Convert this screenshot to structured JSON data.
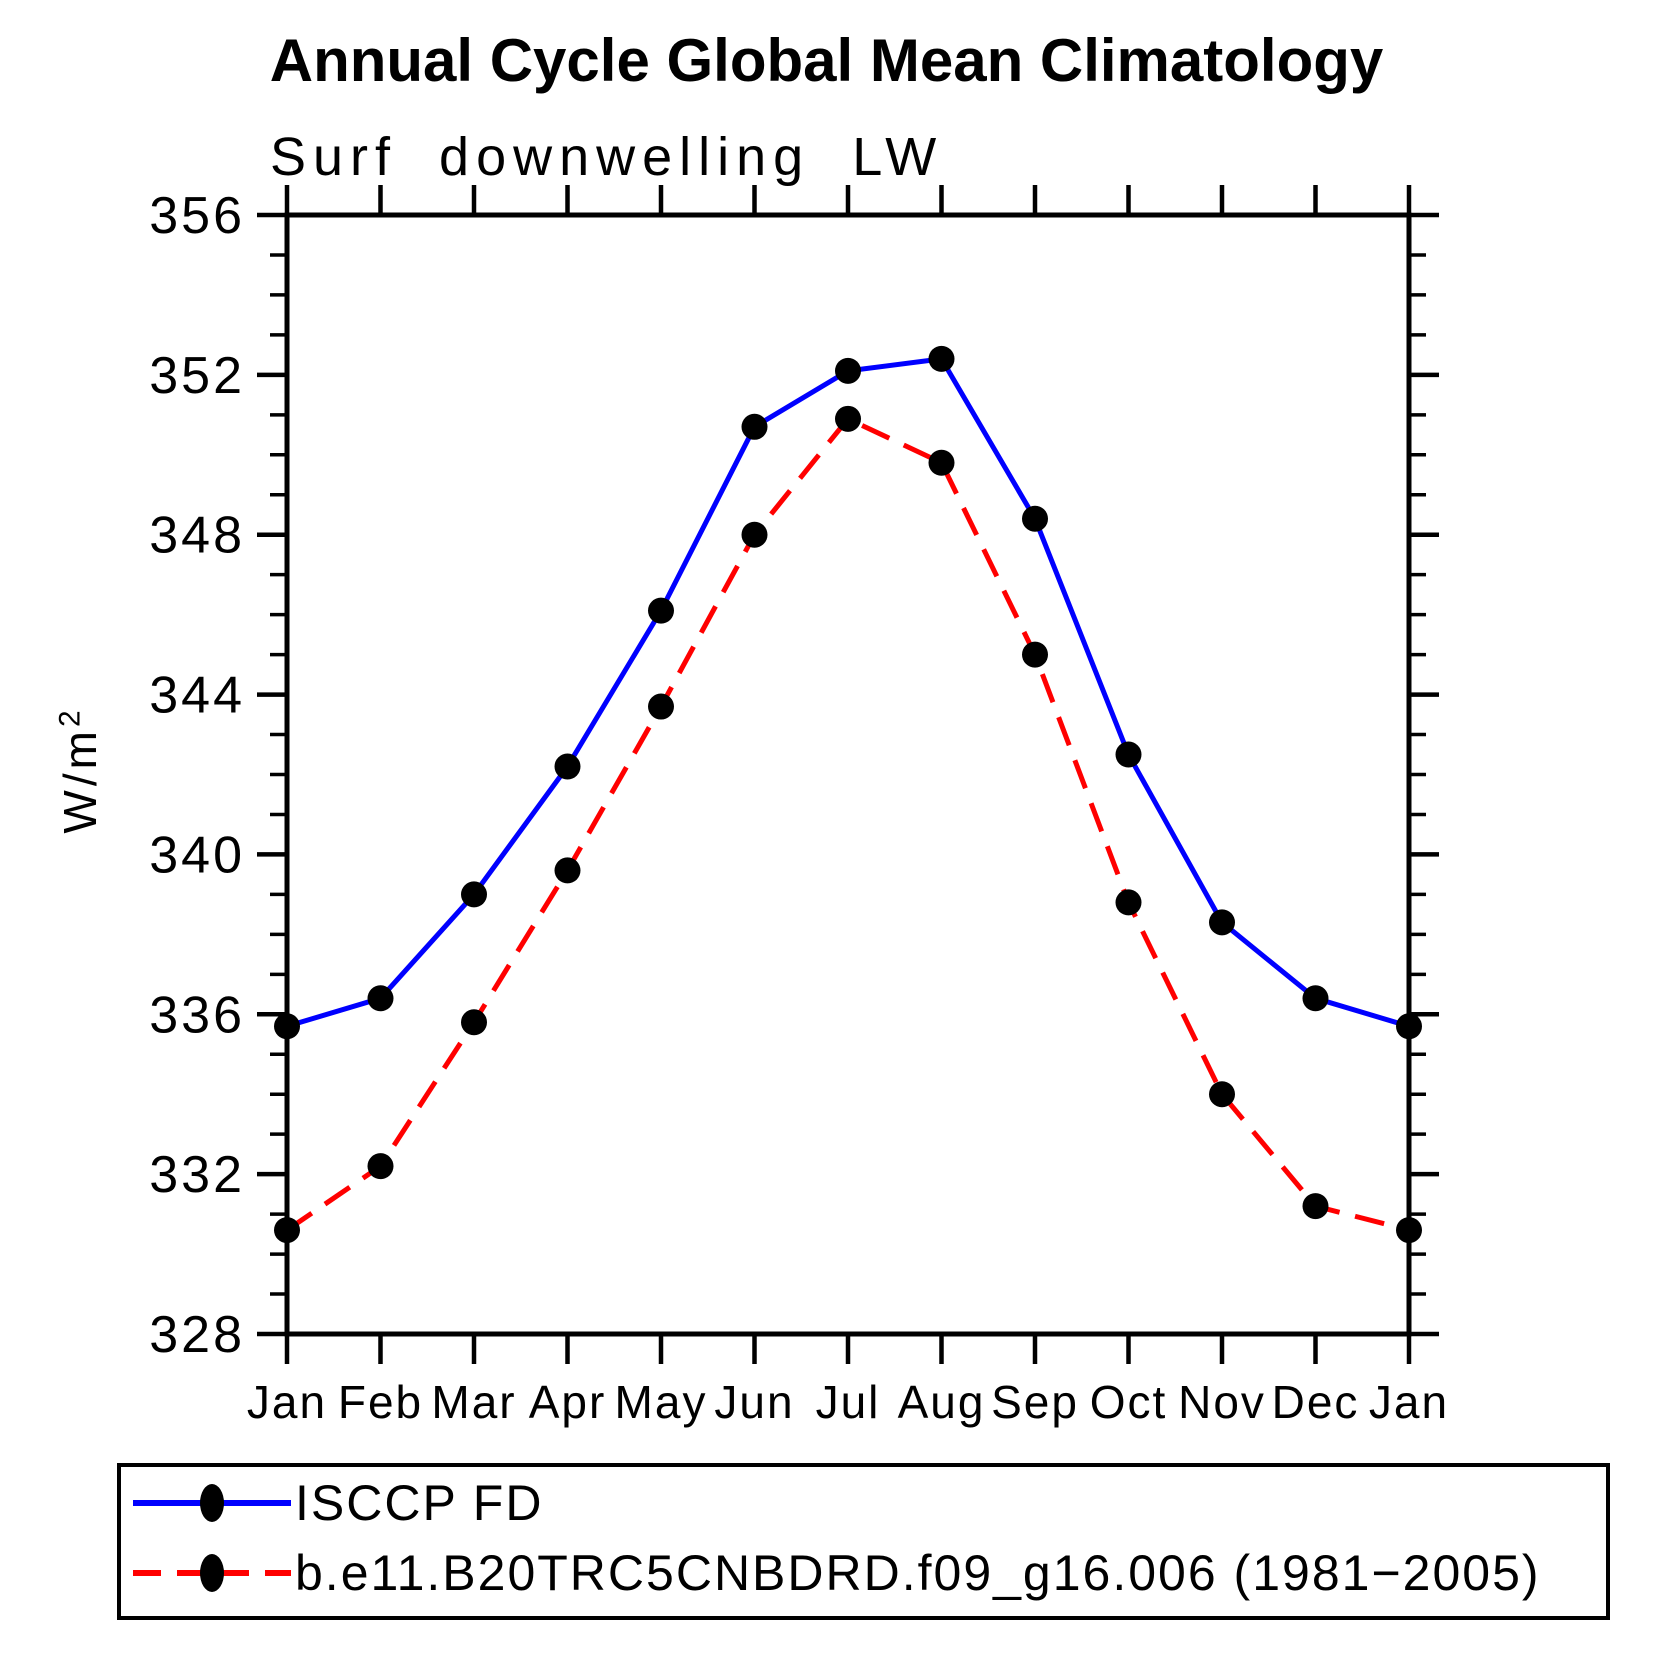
{
  "header": {
    "title": "Annual Cycle Global Mean Climatology",
    "subtitle": "Surf downwelling LW"
  },
  "axes": {
    "ylabel_base": "W/m",
    "ylabel_exponent": "2"
  },
  "chart_data": {
    "type": "line",
    "title": "Annual Cycle Global Mean Climatology",
    "subtitle": "Surf downwelling LW",
    "ylabel": "W/m^2",
    "x_categories": [
      "Jan",
      "Feb",
      "Mar",
      "Apr",
      "May",
      "Jun",
      "Jul",
      "Aug",
      "Sep",
      "Oct",
      "Nov",
      "Dec",
      "Jan"
    ],
    "ylim": [
      328,
      356
    ],
    "ytick_major_interval": 4,
    "ytick_minor_interval": 1,
    "ytick_labels": [
      "328",
      "332",
      "336",
      "340",
      "344",
      "348",
      "352",
      "356"
    ],
    "grid": false,
    "frame": "box-with-outward-ticks",
    "legend_position": "bottom-left-box",
    "series": [
      {
        "name": "ISCCP FD",
        "color": "#0000ff",
        "line_style": "solid",
        "marker": "filled-circle",
        "marker_color": "#000000",
        "values": [
          335.7,
          336.4,
          339.0,
          342.2,
          346.1,
          350.7,
          352.1,
          352.4,
          348.4,
          342.5,
          338.3,
          336.4,
          335.7
        ]
      },
      {
        "name": "b.e11.B20TRC5CNBDRD.f09_g16.006 (1981−2005)",
        "color": "#ff0000",
        "line_style": "dashed",
        "marker": "filled-circle",
        "marker_color": "#000000",
        "values": [
          330.6,
          332.2,
          335.8,
          339.6,
          343.7,
          348.0,
          350.9,
          349.8,
          345.0,
          338.8,
          334.0,
          331.2,
          330.6
        ]
      }
    ]
  },
  "legend": {
    "items": [
      {
        "label": "ISCCP FD"
      },
      {
        "label": "b.e11.B20TRC5CNBDRD.f09_g16.006 (1981−2005)"
      }
    ]
  }
}
